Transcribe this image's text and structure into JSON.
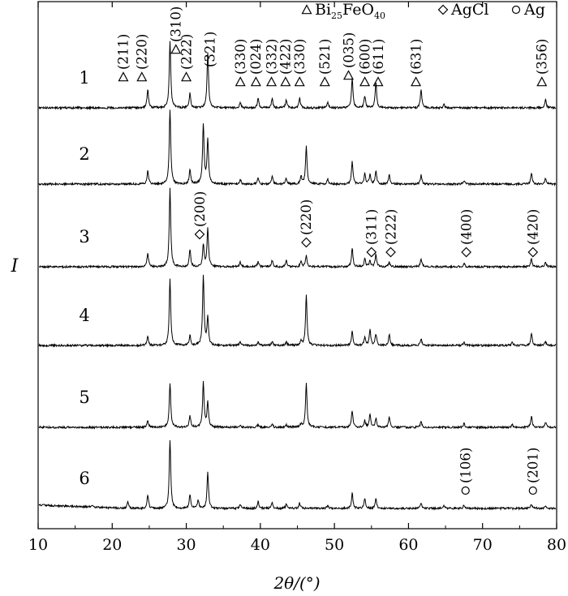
{
  "chart_data": {
    "type": "line",
    "title": "",
    "xlabel": "2θ/(°)",
    "ylabel": "I",
    "xlim": [
      10,
      80
    ],
    "x_ticks": [
      10,
      20,
      30,
      40,
      50,
      60,
      70,
      80
    ],
    "grid": false,
    "legend_position": "top-right",
    "legend": [
      {
        "symbol": "triangle",
        "label": "Bi25FeO40",
        "base": "Bi",
        "sub1": "25",
        "mid": "FeO",
        "sub2": "40"
      },
      {
        "symbol": "diamond",
        "label": "AgCl"
      },
      {
        "symbol": "circle",
        "label": "Ag"
      }
    ],
    "series": [
      {
        "name": "1",
        "peaks": [
          {
            "x": 24.8,
            "h": 0.28
          },
          {
            "x": 27.8,
            "h": 1.0
          },
          {
            "x": 30.5,
            "h": 0.22
          },
          {
            "x": 32.9,
            "h": 0.85
          },
          {
            "x": 37.3,
            "h": 0.08
          },
          {
            "x": 39.7,
            "h": 0.14
          },
          {
            "x": 41.6,
            "h": 0.14
          },
          {
            "x": 43.5,
            "h": 0.12
          },
          {
            "x": 45.3,
            "h": 0.14
          },
          {
            "x": 49.1,
            "h": 0.08
          },
          {
            "x": 52.4,
            "h": 0.45
          },
          {
            "x": 54.1,
            "h": 0.18
          },
          {
            "x": 55.6,
            "h": 0.38
          },
          {
            "x": 61.7,
            "h": 0.28
          },
          {
            "x": 64.8,
            "h": 0.05
          },
          {
            "x": 78.5,
            "h": 0.12
          }
        ],
        "annotations": [
          {
            "x": 21.5,
            "sym": "triangle",
            "text": "(211)",
            "rise": 38
          },
          {
            "x": 24.0,
            "sym": "triangle",
            "text": "(220)",
            "rise": 38
          },
          {
            "x": 28.6,
            "sym": "triangle",
            "text": "(310)",
            "rise": 72
          },
          {
            "x": 30.0,
            "sym": "triangle",
            "text": "(222)",
            "rise": 38
          },
          {
            "x": 33.2,
            "sym": "none",
            "text": "(321)",
            "rise": 50
          },
          {
            "x": 37.3,
            "sym": "triangle",
            "text": "(330)",
            "rise": 32
          },
          {
            "x": 39.4,
            "sym": "triangle",
            "text": "(024)",
            "rise": 32
          },
          {
            "x": 41.5,
            "sym": "triangle",
            "text": "(332)",
            "rise": 32
          },
          {
            "x": 43.4,
            "sym": "triangle",
            "text": "(422)",
            "rise": 32
          },
          {
            "x": 45.3,
            "sym": "triangle",
            "text": "(330)",
            "rise": 32
          },
          {
            "x": 48.7,
            "sym": "triangle",
            "text": "(521)",
            "rise": 32
          },
          {
            "x": 51.9,
            "sym": "triangle",
            "text": "(035)",
            "rise": 40
          },
          {
            "x": 54.1,
            "sym": "triangle",
            "text": "(600)",
            "rise": 32
          },
          {
            "x": 55.9,
            "sym": "triangle",
            "text": "(611)",
            "rise": 32
          },
          {
            "x": 61.0,
            "sym": "triangle",
            "text": "(631)",
            "rise": 32
          },
          {
            "x": 78.0,
            "sym": "triangle",
            "text": "(356)",
            "rise": 32
          }
        ]
      },
      {
        "name": "2",
        "peaks": [
          {
            "x": 24.8,
            "h": 0.18
          },
          {
            "x": 27.8,
            "h": 1.0
          },
          {
            "x": 30.5,
            "h": 0.2
          },
          {
            "x": 32.3,
            "h": 0.8
          },
          {
            "x": 32.9,
            "h": 0.6
          },
          {
            "x": 37.3,
            "h": 0.06
          },
          {
            "x": 39.7,
            "h": 0.08
          },
          {
            "x": 41.6,
            "h": 0.1
          },
          {
            "x": 43.5,
            "h": 0.08
          },
          {
            "x": 45.5,
            "h": 0.1
          },
          {
            "x": 46.2,
            "h": 0.5
          },
          {
            "x": 49.1,
            "h": 0.06
          },
          {
            "x": 52.4,
            "h": 0.3
          },
          {
            "x": 54.1,
            "h": 0.15
          },
          {
            "x": 54.8,
            "h": 0.12
          },
          {
            "x": 55.6,
            "h": 0.18
          },
          {
            "x": 57.4,
            "h": 0.12
          },
          {
            "x": 61.7,
            "h": 0.12
          },
          {
            "x": 67.5,
            "h": 0.05
          },
          {
            "x": 76.6,
            "h": 0.15
          },
          {
            "x": 78.5,
            "h": 0.08
          }
        ],
        "annotations": []
      },
      {
        "name": "3",
        "peaks": [
          {
            "x": 24.8,
            "h": 0.18
          },
          {
            "x": 27.8,
            "h": 1.0
          },
          {
            "x": 30.5,
            "h": 0.22
          },
          {
            "x": 32.3,
            "h": 0.28
          },
          {
            "x": 32.9,
            "h": 0.5
          },
          {
            "x": 37.3,
            "h": 0.06
          },
          {
            "x": 39.7,
            "h": 0.07
          },
          {
            "x": 41.6,
            "h": 0.08
          },
          {
            "x": 43.5,
            "h": 0.08
          },
          {
            "x": 45.5,
            "h": 0.08
          },
          {
            "x": 46.2,
            "h": 0.14
          },
          {
            "x": 52.4,
            "h": 0.24
          },
          {
            "x": 54.1,
            "h": 0.1
          },
          {
            "x": 54.8,
            "h": 0.08
          },
          {
            "x": 55.6,
            "h": 0.16
          },
          {
            "x": 57.4,
            "h": 0.06
          },
          {
            "x": 61.7,
            "h": 0.1
          },
          {
            "x": 67.5,
            "h": 0.04
          },
          {
            "x": 76.6,
            "h": 0.1
          },
          {
            "x": 78.5,
            "h": 0.06
          }
        ],
        "annotations": [
          {
            "x": 31.8,
            "sym": "diamond",
            "text": "(200)",
            "rise": 40
          },
          {
            "x": 46.2,
            "sym": "diamond",
            "text": "(220)",
            "rise": 30
          },
          {
            "x": 55.0,
            "sym": "diamond",
            "text": "(311)",
            "rise": 18
          },
          {
            "x": 57.6,
            "sym": "diamond",
            "text": "(222)",
            "rise": 18
          },
          {
            "x": 67.8,
            "sym": "diamond",
            "text": "(400)",
            "rise": 18
          },
          {
            "x": 76.8,
            "sym": "diamond",
            "text": "(420)",
            "rise": 18
          }
        ]
      },
      {
        "name": "4",
        "peaks": [
          {
            "x": 24.8,
            "h": 0.12
          },
          {
            "x": 27.8,
            "h": 0.95
          },
          {
            "x": 30.5,
            "h": 0.14
          },
          {
            "x": 32.3,
            "h": 1.0
          },
          {
            "x": 32.9,
            "h": 0.4
          },
          {
            "x": 37.3,
            "h": 0.05
          },
          {
            "x": 39.7,
            "h": 0.05
          },
          {
            "x": 41.6,
            "h": 0.06
          },
          {
            "x": 43.5,
            "h": 0.05
          },
          {
            "x": 45.5,
            "h": 0.06
          },
          {
            "x": 46.2,
            "h": 0.72
          },
          {
            "x": 52.4,
            "h": 0.2
          },
          {
            "x": 54.1,
            "h": 0.12
          },
          {
            "x": 54.8,
            "h": 0.22
          },
          {
            "x": 55.6,
            "h": 0.16
          },
          {
            "x": 57.4,
            "h": 0.16
          },
          {
            "x": 61.7,
            "h": 0.1
          },
          {
            "x": 67.5,
            "h": 0.05
          },
          {
            "x": 74.0,
            "h": 0.04
          },
          {
            "x": 76.6,
            "h": 0.18
          },
          {
            "x": 78.5,
            "h": 0.05
          }
        ],
        "annotations": []
      },
      {
        "name": "5",
        "peaks": [
          {
            "x": 24.8,
            "h": 0.12
          },
          {
            "x": 27.8,
            "h": 0.8
          },
          {
            "x": 30.5,
            "h": 0.2
          },
          {
            "x": 32.3,
            "h": 0.82
          },
          {
            "x": 32.9,
            "h": 0.45
          },
          {
            "x": 37.3,
            "h": 0.05
          },
          {
            "x": 39.7,
            "h": 0.05
          },
          {
            "x": 41.6,
            "h": 0.06
          },
          {
            "x": 43.5,
            "h": 0.05
          },
          {
            "x": 45.5,
            "h": 0.06
          },
          {
            "x": 46.2,
            "h": 0.8
          },
          {
            "x": 52.4,
            "h": 0.3
          },
          {
            "x": 54.1,
            "h": 0.12
          },
          {
            "x": 54.8,
            "h": 0.24
          },
          {
            "x": 55.6,
            "h": 0.16
          },
          {
            "x": 57.4,
            "h": 0.2
          },
          {
            "x": 61.7,
            "h": 0.1
          },
          {
            "x": 67.5,
            "h": 0.07
          },
          {
            "x": 74.0,
            "h": 0.05
          },
          {
            "x": 76.6,
            "h": 0.2
          },
          {
            "x": 78.5,
            "h": 0.1
          }
        ],
        "annotations": []
      },
      {
        "name": "6",
        "peaks": [
          {
            "x": 17.2,
            "h": 0.03
          },
          {
            "x": 22.1,
            "h": 0.1
          },
          {
            "x": 24.8,
            "h": 0.2
          },
          {
            "x": 27.8,
            "h": 1.0
          },
          {
            "x": 30.5,
            "h": 0.2
          },
          {
            "x": 31.6,
            "h": 0.12
          },
          {
            "x": 32.9,
            "h": 0.52
          },
          {
            "x": 37.3,
            "h": 0.06
          },
          {
            "x": 39.7,
            "h": 0.1
          },
          {
            "x": 41.6,
            "h": 0.08
          },
          {
            "x": 43.5,
            "h": 0.06
          },
          {
            "x": 45.3,
            "h": 0.08
          },
          {
            "x": 49.1,
            "h": 0.05
          },
          {
            "x": 52.4,
            "h": 0.22
          },
          {
            "x": 54.1,
            "h": 0.14
          },
          {
            "x": 55.6,
            "h": 0.14
          },
          {
            "x": 61.7,
            "h": 0.08
          },
          {
            "x": 64.8,
            "h": 0.04
          },
          {
            "x": 67.5,
            "h": 0.05
          },
          {
            "x": 76.6,
            "h": 0.06
          },
          {
            "x": 78.5,
            "h": 0.04
          }
        ],
        "annotations": [
          {
            "x": 67.7,
            "sym": "circle",
            "text": "(106)",
            "rise": 22
          },
          {
            "x": 76.8,
            "sym": "circle",
            "text": "(201)",
            "rise": 22
          }
        ]
      }
    ]
  }
}
